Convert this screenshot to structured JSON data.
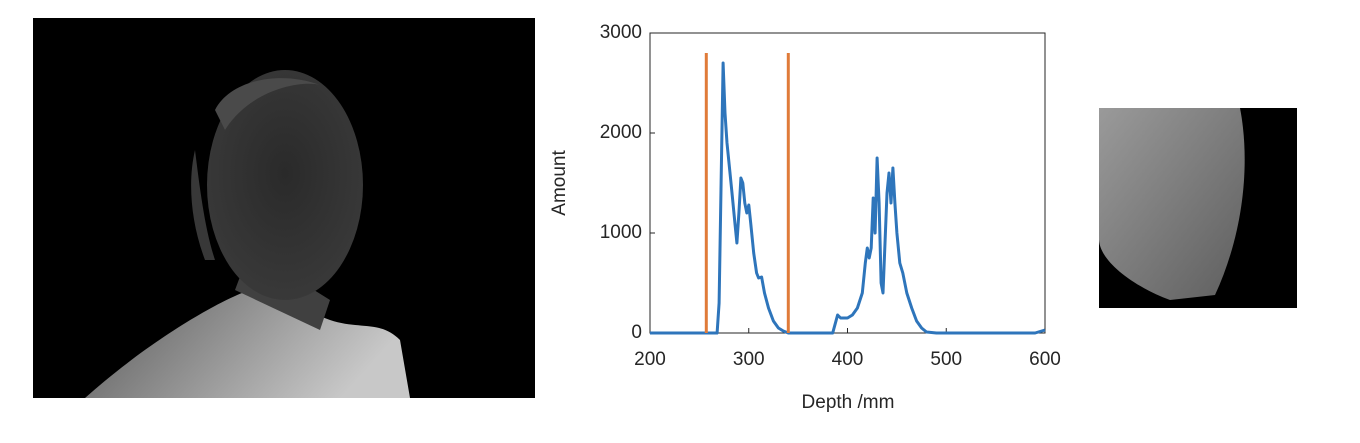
{
  "chart_data": {
    "type": "line",
    "xlabel": "Depth /mm",
    "ylabel": "Amount",
    "xlim": [
      200,
      600
    ],
    "ylim": [
      0,
      3000
    ],
    "xticks": [
      200,
      300,
      400,
      500,
      600
    ],
    "yticks": [
      0,
      1000,
      2000,
      3000
    ],
    "series": [
      {
        "color": "#2e75bb",
        "x": [
          200,
          260,
          268,
          270,
          272,
          274,
          276,
          278,
          280,
          283,
          286,
          288,
          290,
          292,
          294,
          296,
          298,
          300,
          302,
          305,
          308,
          310,
          313,
          316,
          320,
          325,
          330,
          335,
          340,
          385,
          390,
          393,
          400,
          405,
          410,
          415,
          418,
          420,
          422,
          424,
          426,
          428,
          430,
          432,
          434,
          436,
          438,
          440,
          442,
          444,
          446,
          448,
          450,
          453,
          456,
          460,
          465,
          470,
          475,
          480,
          490,
          590,
          600
        ],
        "values": [
          0,
          0,
          0,
          300,
          1500,
          2700,
          2200,
          1900,
          1700,
          1400,
          1100,
          900,
          1200,
          1550,
          1500,
          1300,
          1200,
          1280,
          1100,
          800,
          600,
          550,
          560,
          400,
          250,
          120,
          50,
          20,
          0,
          0,
          180,
          150,
          150,
          180,
          250,
          400,
          700,
          850,
          750,
          850,
          1350,
          1000,
          1750,
          1300,
          500,
          400,
          900,
          1400,
          1600,
          1300,
          1650,
          1300,
          1000,
          700,
          600,
          400,
          250,
          120,
          50,
          10,
          0,
          0,
          30
        ]
      },
      {
        "color": "#e07b39",
        "x": [
          257,
          257
        ],
        "values": [
          0,
          2800
        ]
      },
      {
        "color": "#e07b39",
        "x": [
          340,
          340
        ],
        "values": [
          0,
          2800
        ]
      }
    ]
  }
}
